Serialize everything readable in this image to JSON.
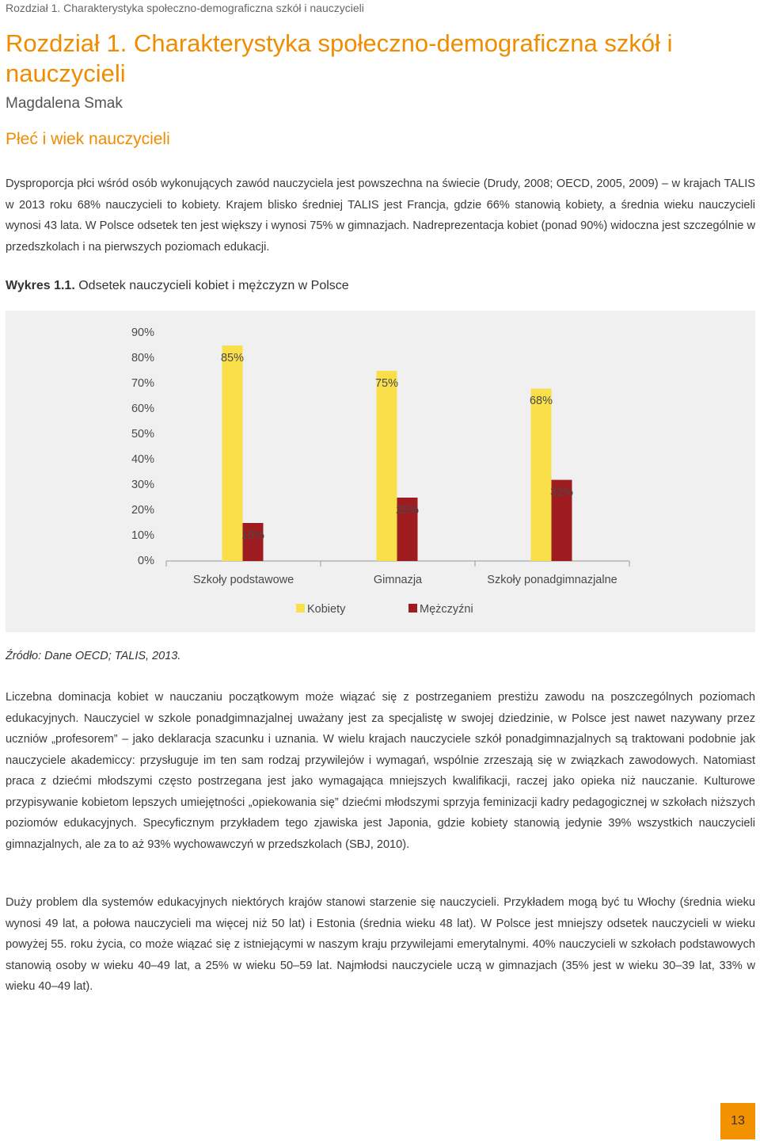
{
  "header": {
    "running_title": "Rozdział 1. Charakterystyka społeczno-demograficzna szkół i nauczycieli"
  },
  "chapter_title": "Rozdział 1. Charakterystyka społeczno-demograficzna szkół i nauczycieli",
  "author": "Magdalena Smak",
  "section_title": "Płeć i wiek nauczycieli",
  "intro_paragraph": "Dysproporcja płci wśród osób wykonujących zawód nauczyciela jest powszechna na świecie (Drudy, 2008; OECD, 2005, 2009) – w krajach TALIS w 2013 roku 68% nauczycieli to kobiety. Krajem blisko średniej TALIS jest Francja, gdzie 66% stanowią kobiety, a średnia wieku nauczycieli wynosi 43 lata. W Polsce odsetek ten jest większy i wynosi 75% w gimnazjach. Nadreprezentacja kobiet (ponad 90%) widoczna jest szczególnie w przedszkolach i na pierwszych poziomach edukacji.",
  "figure": {
    "label": "Wykres 1.1.",
    "caption": "Odsetek nauczycieli kobiet i mężczyzn w Polsce"
  },
  "chart_data": {
    "type": "bar",
    "categories": [
      "Szkoły podstawowe",
      "Gimnazja",
      "Szkoły ponadgimnazjalne"
    ],
    "series": [
      {
        "name": "Kobiety",
        "color": "#f9e04b",
        "values": [
          85,
          75,
          68
        ],
        "value_labels": [
          "85%",
          "75%",
          "68%"
        ]
      },
      {
        "name": "Mężczyźni",
        "color": "#9e1b20",
        "values": [
          15,
          25,
          32
        ],
        "value_labels": [
          "15%",
          "25%",
          "32%"
        ]
      }
    ],
    "ylim": [
      0,
      90
    ],
    "yticks": [
      {
        "value": 0,
        "label": "0%"
      },
      {
        "value": 10,
        "label": "10%"
      },
      {
        "value": 20,
        "label": "20%"
      },
      {
        "value": 30,
        "label": "30%"
      },
      {
        "value": 40,
        "label": "40%"
      },
      {
        "value": 50,
        "label": "50%"
      },
      {
        "value": 60,
        "label": "60%"
      },
      {
        "value": 70,
        "label": "70%"
      },
      {
        "value": 80,
        "label": "80%"
      },
      {
        "value": 90,
        "label": "90%"
      }
    ],
    "grid": false,
    "legend": "bottom"
  },
  "source": "Źródło: Dane OECD; TALIS, 2013.",
  "body_paragraphs": [
    "Liczebna dominacja kobiet w nauczaniu początkowym może wiązać się z postrzeganiem prestiżu zawodu na poszczególnych poziomach edukacyjnych. Nauczyciel w szkole ponadgimnazjalnej uważany jest za specjalistę w swojej dziedzinie, w Polsce jest nawet nazywany przez uczniów „profesorem” – jako deklaracja szacunku i uznania. W wielu krajach nauczyciele szkół ponadgimnazjalnych są traktowani podobnie jak nauczyciele akademiccy: przysługuje im ten sam rodzaj przywilejów i wymagań, wspólnie zrzeszają się w związkach zawodowych. Natomiast praca z dziećmi młodszymi często postrzegana jest jako wymagająca mniejszych kwalifikacji, raczej jako opieka niż nauczanie. Kulturowe przypisywanie kobietom lepszych umiejętności „opiekowania się” dziećmi młodszymi sprzyja feminizacji kadry pedagogicznej w szkołach niższych poziomów edukacyjnych. Specyficznym przykładem tego zjawiska jest Japonia, gdzie kobiety stanowią jedynie 39% wszystkich nauczycieli gimnazjalnych, ale za to aż 93% wychowawczyń w przedszkolach (SBJ, 2010).",
    "Duży problem dla systemów edukacyjnych niektórych krajów stanowi starzenie się nauczycieli. Przykładem mogą być tu Włochy (średnia wieku wynosi 49 lat, a połowa nauczycieli ma więcej niż 50 lat) i Estonia (średnia wieku 48 lat). W Polsce jest mniejszy odsetek nauczycieli w wieku powyżej 55. roku życia, co może wiązać się z istniejącymi w naszym kraju przywilejami emerytalnymi. 40% nauczycieli w szkołach podstawowych stanowią osoby w wieku 40–49 lat, a 25% w wieku 50–59 lat. Najmłodsi nauczyciele uczą w gimnazjach (35% jest w wieku 30–39 lat, 33% w wieku 40–49 lat)."
  ],
  "page_number": "13"
}
